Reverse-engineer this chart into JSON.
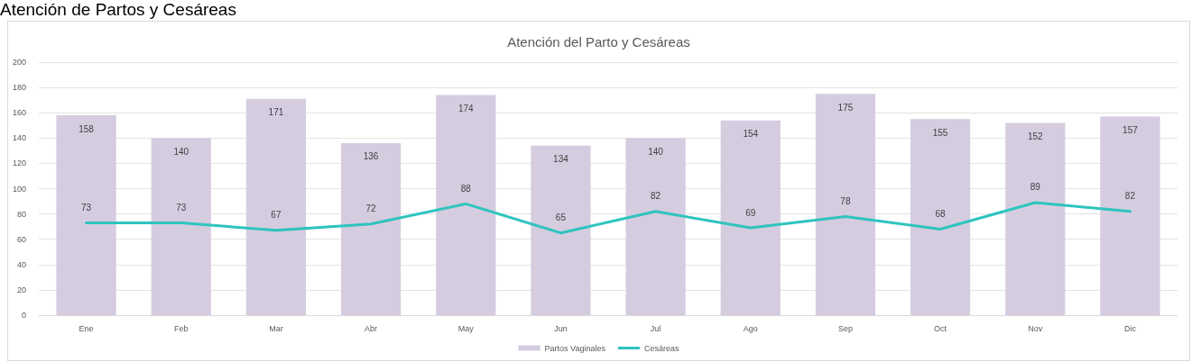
{
  "chart_data": {
    "type": "bar",
    "title": "Atención del Parto y Cesáreas",
    "annotations": [
      "Atención de Partos y Cesáreas"
    ],
    "categories": [
      "Ene",
      "Feb",
      "Mar",
      "Abr",
      "May",
      "Jun",
      "Jul",
      "Ago",
      "Sep",
      "Oct",
      "Nov",
      "Dic"
    ],
    "series": [
      {
        "name": "Partos Vaginales",
        "color": "#d5cce0",
        "values": [
          158,
          140,
          171,
          136,
          174,
          134,
          140,
          154,
          175,
          155,
          152,
          157
        ]
      },
      {
        "name": "Cesáreas",
        "type": "line",
        "color": "#2ec4be",
        "values": [
          73,
          73,
          67,
          72,
          88,
          65,
          82,
          69,
          78,
          68,
          89,
          82
        ]
      }
    ],
    "ylim": [
      0,
      200
    ],
    "yticks": [
      0,
      20,
      40,
      60,
      80,
      100,
      120,
      140,
      160,
      180,
      200
    ],
    "grid": "y",
    "legend": "bottom",
    "data_labels": true,
    "marker": "none",
    "line_style": "solid"
  }
}
